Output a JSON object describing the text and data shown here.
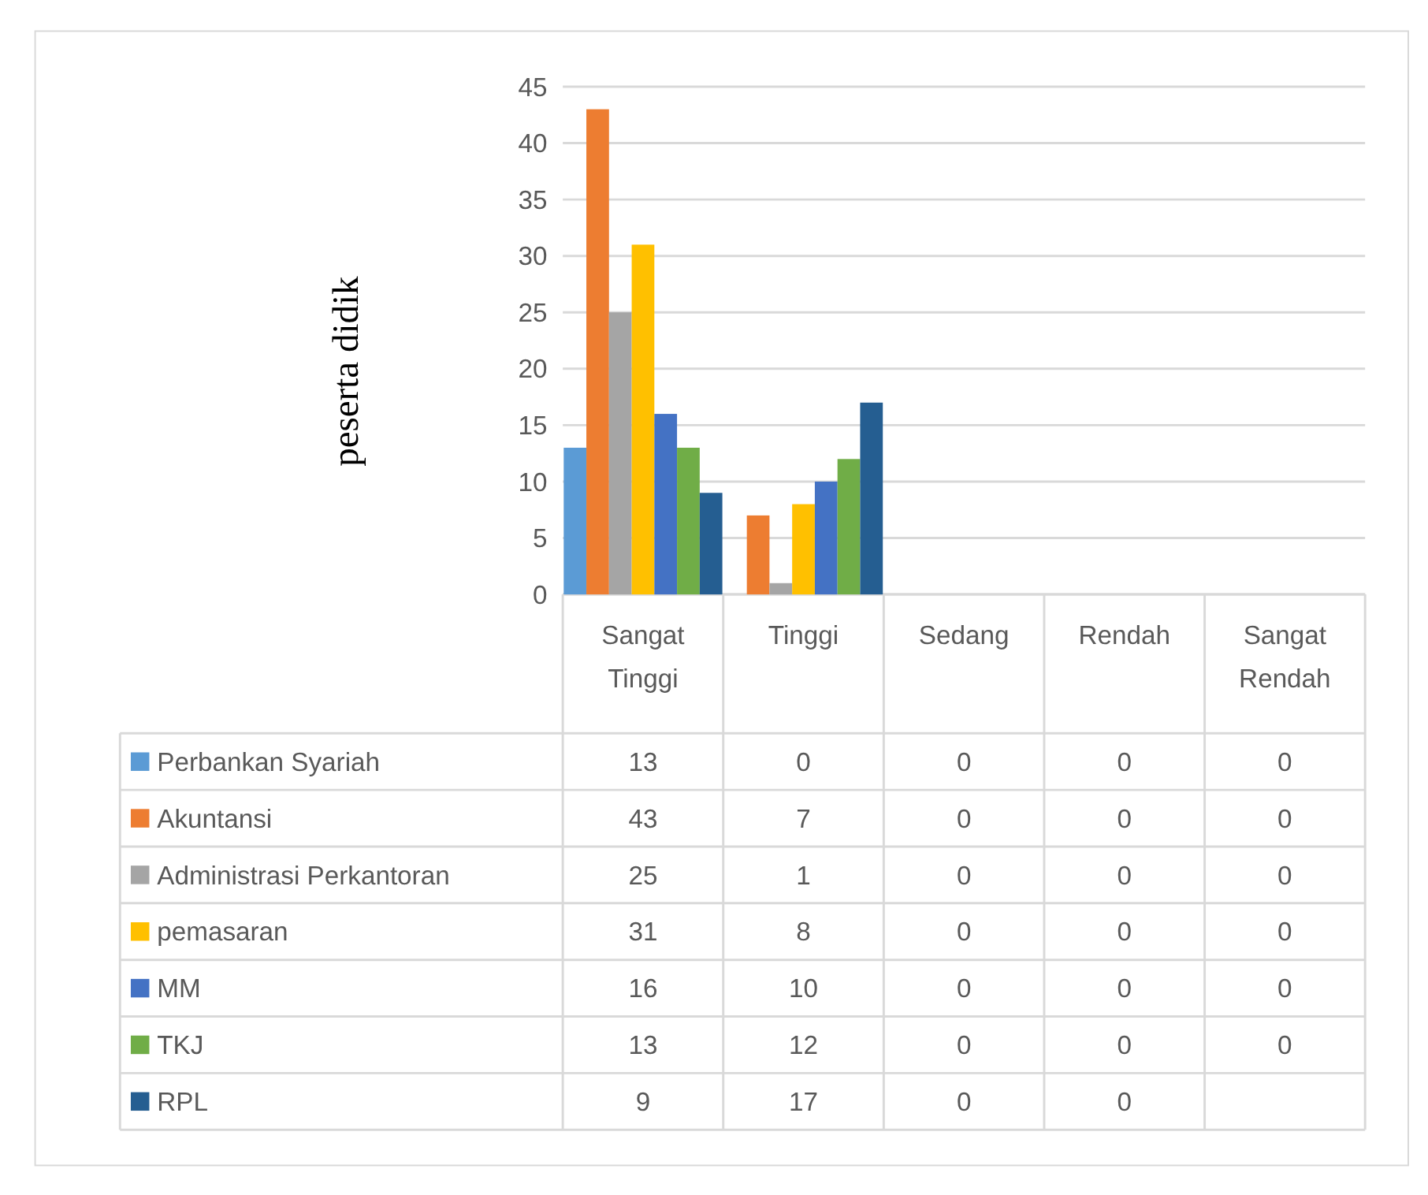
{
  "chart_data": {
    "type": "bar",
    "ylabel": "peserta didik",
    "categories": [
      "Sangat Tinggi",
      "Tinggi",
      "Sedang",
      "Rendah",
      "Sangat Rendah"
    ],
    "series": [
      {
        "name": "Perbankan Syariah",
        "color": "#5b9bd5",
        "values": [
          13,
          0,
          0,
          0,
          0
        ]
      },
      {
        "name": "Akuntansi",
        "color": "#ed7d31",
        "values": [
          43,
          7,
          0,
          0,
          0
        ]
      },
      {
        "name": "Administrasi Perkantoran",
        "color": "#a5a5a5",
        "values": [
          25,
          1,
          0,
          0,
          0
        ]
      },
      {
        "name": "pemasaran",
        "color": "#ffc000",
        "values": [
          31,
          8,
          0,
          0,
          0
        ]
      },
      {
        "name": "MM",
        "color": "#4472c4",
        "values": [
          16,
          10,
          0,
          0,
          0
        ]
      },
      {
        "name": "TKJ",
        "color": "#70ad47",
        "values": [
          13,
          12,
          0,
          0,
          0
        ]
      },
      {
        "name": "RPL",
        "color": "#255e91",
        "values": [
          9,
          17,
          0,
          0,
          null
        ]
      }
    ],
    "ylim": [
      0,
      45
    ],
    "yticks": [
      0,
      5,
      10,
      15,
      20,
      25,
      30,
      35,
      40,
      45
    ],
    "grid": "y",
    "legend": "bottom",
    "data_labels": true
  }
}
